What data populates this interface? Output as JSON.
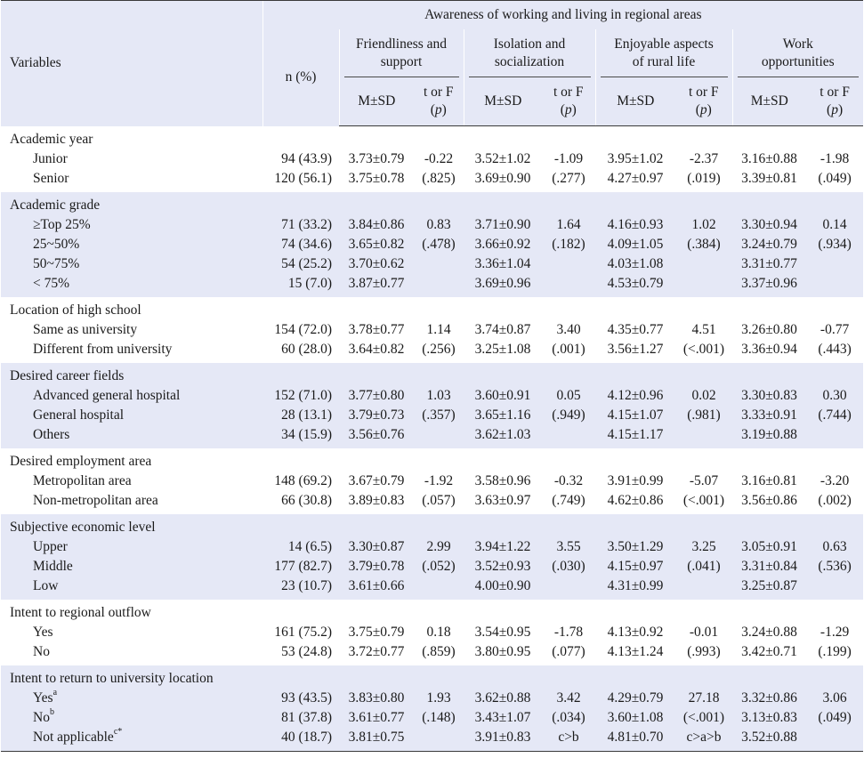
{
  "header": {
    "variables": "Variables",
    "n_pct": "n (%)",
    "group_title": "Awareness of working and living in regional areas",
    "domains": [
      {
        "line1": "Friendliness and",
        "line2": "support"
      },
      {
        "line1": "Isolation and",
        "line2": "socialization"
      },
      {
        "line1": "Enjoyable aspects",
        "line2": "of rural life"
      },
      {
        "line1": "Work",
        "line2": "opportunities"
      }
    ],
    "msd": "M±SD",
    "t_or_f": "t or F",
    "p": "(p)"
  },
  "groups": [
    {
      "title": "Academic year",
      "rows": [
        {
          "label": "Junior",
          "sup": "",
          "n": "94 (43.9)",
          "v": [
            "3.73±0.79",
            "-0.22",
            "3.52±1.02",
            "-1.09",
            "3.95±1.02",
            "-2.37",
            "3.16±0.88",
            "-1.98"
          ]
        },
        {
          "label": "Senior",
          "sup": "",
          "n": "120 (56.1)",
          "v": [
            "3.75±0.78",
            "(.825)",
            "3.69±0.90",
            "(.277)",
            "4.27±0.97",
            "(.019)",
            "3.39±0.81",
            "(.049)"
          ]
        }
      ]
    },
    {
      "title": "Academic grade",
      "rows": [
        {
          "label": "≥Top 25%",
          "sup": "",
          "n": "71 (33.2)",
          "v": [
            "3.84±0.86",
            "0.83",
            "3.71±0.90",
            "1.64",
            "4.16±0.93",
            "1.02",
            "3.30±0.94",
            "0.14"
          ]
        },
        {
          "label": "25~50%",
          "sup": "",
          "n": "74 (34.6)",
          "v": [
            "3.65±0.82",
            "(.478)",
            "3.66±0.92",
            "(.182)",
            "4.09±1.05",
            "(.384)",
            "3.24±0.79",
            "(.934)"
          ]
        },
        {
          "label": "50~75%",
          "sup": "",
          "n": "54 (25.2)",
          "v": [
            "3.70±0.62",
            "",
            "3.36±1.04",
            "",
            "4.03±1.08",
            "",
            "3.31±0.77",
            ""
          ]
        },
        {
          "label": "< 75%",
          "sup": "",
          "n": "15 (7.0)",
          "v": [
            "3.87±0.77",
            "",
            "3.69±0.96",
            "",
            "4.53±0.79",
            "",
            "3.37±0.96",
            ""
          ]
        }
      ]
    },
    {
      "title": "Location of high school",
      "rows": [
        {
          "label": "Same as university",
          "sup": "",
          "n": "154 (72.0)",
          "v": [
            "3.78±0.77",
            "1.14",
            "3.74±0.87",
            "3.40",
            "4.35±0.77",
            "4.51",
            "3.26±0.80",
            "-0.77"
          ]
        },
        {
          "label": "Different from university",
          "sup": "",
          "n": "60 (28.0)",
          "v": [
            "3.64±0.82",
            "(.256)",
            "3.25±1.08",
            "(.001)",
            "3.56±1.27",
            "(<.001)",
            "3.36±0.94",
            "(.443)"
          ]
        }
      ]
    },
    {
      "title": "Desired career fields",
      "rows": [
        {
          "label": "Advanced general hospital",
          "sup": "",
          "n": "152 (71.0)",
          "v": [
            "3.77±0.80",
            "1.03",
            "3.60±0.91",
            "0.05",
            "4.12±0.96",
            "0.02",
            "3.30±0.83",
            "0.30"
          ]
        },
        {
          "label": "General hospital",
          "sup": "",
          "n": "28 (13.1)",
          "v": [
            "3.79±0.73",
            "(.357)",
            "3.65±1.16",
            "(.949)",
            "4.15±1.07",
            "(.981)",
            "3.33±0.91",
            "(.744)"
          ]
        },
        {
          "label": "Others",
          "sup": "",
          "n": "34 (15.9)",
          "v": [
            "3.56±0.76",
            "",
            "3.62±1.03",
            "",
            "4.15±1.17",
            "",
            "3.19±0.88",
            ""
          ]
        }
      ]
    },
    {
      "title": "Desired employment area",
      "rows": [
        {
          "label": "Metropolitan area",
          "sup": "",
          "n": "148 (69.2)",
          "v": [
            "3.67±0.79",
            "-1.92",
            "3.58±0.96",
            "-0.32",
            "3.91±0.99",
            "-5.07",
            "3.16±0.81",
            "-3.20"
          ]
        },
        {
          "label": "Non-metropolitan area",
          "sup": "",
          "n": "66 (30.8)",
          "v": [
            "3.89±0.83",
            "(.057)",
            "3.63±0.97",
            "(.749)",
            "4.62±0.86",
            "(<.001)",
            "3.56±0.86",
            "(.002)"
          ]
        }
      ]
    },
    {
      "title": "Subjective economic level",
      "rows": [
        {
          "label": "Upper",
          "sup": "",
          "n": "14 (6.5)",
          "v": [
            "3.30±0.87",
            "2.99",
            "3.94±1.22",
            "3.55",
            "3.50±1.29",
            "3.25",
            "3.05±0.91",
            "0.63"
          ]
        },
        {
          "label": "Middle",
          "sup": "",
          "n": "177 (82.7)",
          "v": [
            "3.79±0.78",
            "(.052)",
            "3.52±0.93",
            "(.030)",
            "4.15±0.97",
            "(.041)",
            "3.31±0.84",
            "(.536)"
          ]
        },
        {
          "label": "Low",
          "sup": "",
          "n": "23 (10.7)",
          "v": [
            "3.61±0.66",
            "",
            "4.00±0.90",
            "",
            "4.31±0.99",
            "",
            "3.25±0.87",
            ""
          ]
        }
      ]
    },
    {
      "title": "Intent to regional outflow",
      "rows": [
        {
          "label": "Yes",
          "sup": "",
          "n": "161 (75.2)",
          "v": [
            "3.75±0.79",
            "0.18",
            "3.54±0.95",
            "-1.78",
            "4.13±0.92",
            "-0.01",
            "3.24±0.88",
            "-1.29"
          ]
        },
        {
          "label": "No",
          "sup": "",
          "n": "53 (24.8)",
          "v": [
            "3.72±0.77",
            "(.859)",
            "3.80±0.95",
            "(.077)",
            "4.13±1.24",
            "(.993)",
            "3.42±0.71",
            "(.199)"
          ]
        }
      ]
    },
    {
      "title": "Intent to return to university location",
      "rows": [
        {
          "label": "Yes",
          "sup": "a",
          "n": "93 (43.5)",
          "v": [
            "3.83±0.80",
            "1.93",
            "3.62±0.88",
            "3.42",
            "4.29±0.79",
            "27.18",
            "3.32±0.86",
            "3.06"
          ]
        },
        {
          "label": "No",
          "sup": "b",
          "n": "81 (37.8)",
          "v": [
            "3.61±0.77",
            "(.148)",
            "3.43±1.07",
            "(.034)",
            "3.60±1.08",
            "(<.001)",
            "3.13±0.83",
            "(.049)"
          ]
        },
        {
          "label": "Not applicable",
          "sup": "c*",
          "n": "40 (18.7)",
          "v": [
            "3.81±0.75",
            "",
            "3.91±0.83",
            "c>b",
            "4.81±0.70",
            "c>a>b",
            "3.52±0.88",
            ""
          ]
        }
      ]
    }
  ]
}
